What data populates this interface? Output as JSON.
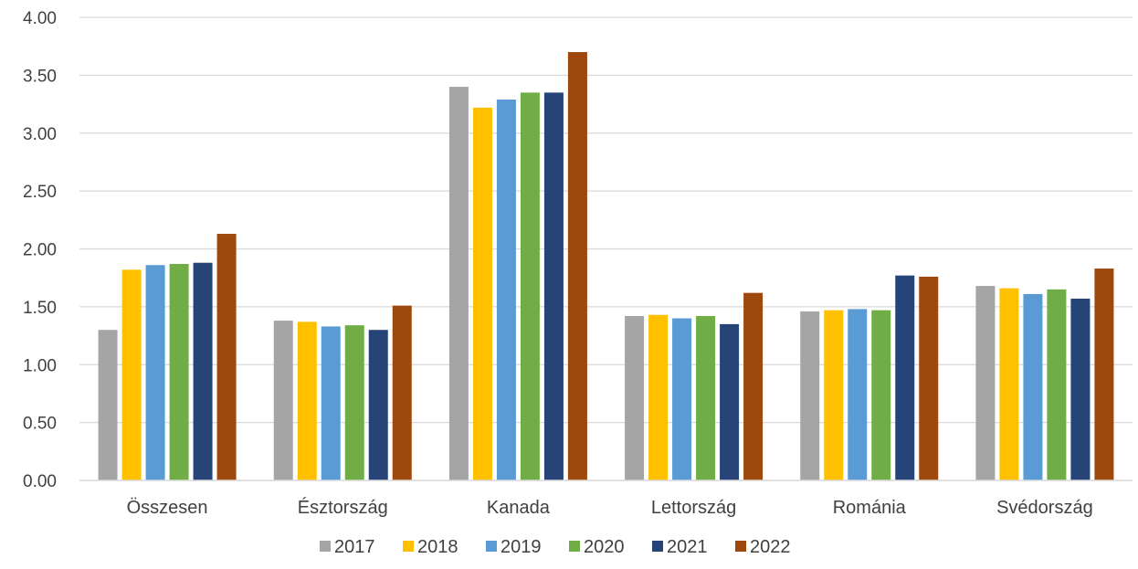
{
  "chart_data": {
    "type": "bar",
    "title": "",
    "xlabel": "",
    "ylabel": "",
    "ylim": [
      0,
      4
    ],
    "yticks": [
      "0.00",
      "0.50",
      "1.00",
      "1.50",
      "2.00",
      "2.50",
      "3.00",
      "3.50",
      "4.00"
    ],
    "grid": true,
    "legend_position": "bottom",
    "categories": [
      "Összesen",
      "Észtország",
      "Kanada",
      "Lettország",
      "Románia",
      "Svédország"
    ],
    "series": [
      {
        "name": "2017",
        "color": "#A5A5A5",
        "values": [
          1.3,
          1.38,
          3.4,
          1.42,
          1.46,
          1.68
        ]
      },
      {
        "name": "2018",
        "color": "#FFC000",
        "values": [
          1.82,
          1.37,
          3.22,
          1.43,
          1.47,
          1.66
        ]
      },
      {
        "name": "2019",
        "color": "#5B9BD5",
        "values": [
          1.86,
          1.33,
          3.29,
          1.4,
          1.48,
          1.61
        ]
      },
      {
        "name": "2020",
        "color": "#70AD47",
        "values": [
          1.87,
          1.34,
          3.35,
          1.42,
          1.47,
          1.65
        ]
      },
      {
        "name": "2021",
        "color": "#264478",
        "values": [
          1.88,
          1.3,
          3.35,
          1.35,
          1.77,
          1.57
        ]
      },
      {
        "name": "2022",
        "color": "#9E480E",
        "values": [
          2.13,
          1.51,
          3.7,
          1.62,
          1.76,
          1.83
        ]
      }
    ]
  }
}
